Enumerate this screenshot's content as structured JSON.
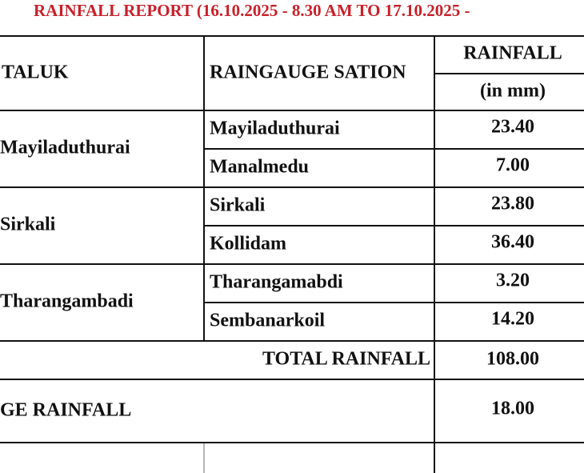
{
  "title": "RAINFALL REPORT (16.10.2025 - 8.30 AM TO 17.10.2025 -",
  "table": {
    "header": {
      "taluk": "TALUK",
      "station": "RAINGAUGE SATION",
      "rainfall": "RAINFALL",
      "unit": "(in mm)"
    },
    "groups": [
      {
        "taluk": "Mayiladuthurai",
        "stations": [
          {
            "name": "Mayiladuthurai",
            "rainfall": "23.40"
          },
          {
            "name": "Manalmedu",
            "rainfall": "7.00"
          }
        ]
      },
      {
        "taluk": "Sirkali",
        "stations": [
          {
            "name": "Sirkali",
            "rainfall": "23.80"
          },
          {
            "name": "Kollidam",
            "rainfall": "36.40"
          }
        ]
      },
      {
        "taluk": "Tharangambadi",
        "stations": [
          {
            "name": "Tharangamabdi",
            "rainfall": "3.20"
          },
          {
            "name": "Sembanarkoil",
            "rainfall": "14.20"
          }
        ]
      }
    ],
    "total": {
      "label": "TOTAL RAINFALL",
      "value": "108.00"
    },
    "average": {
      "label": "GE RAINFALL",
      "value": "18.00"
    }
  }
}
